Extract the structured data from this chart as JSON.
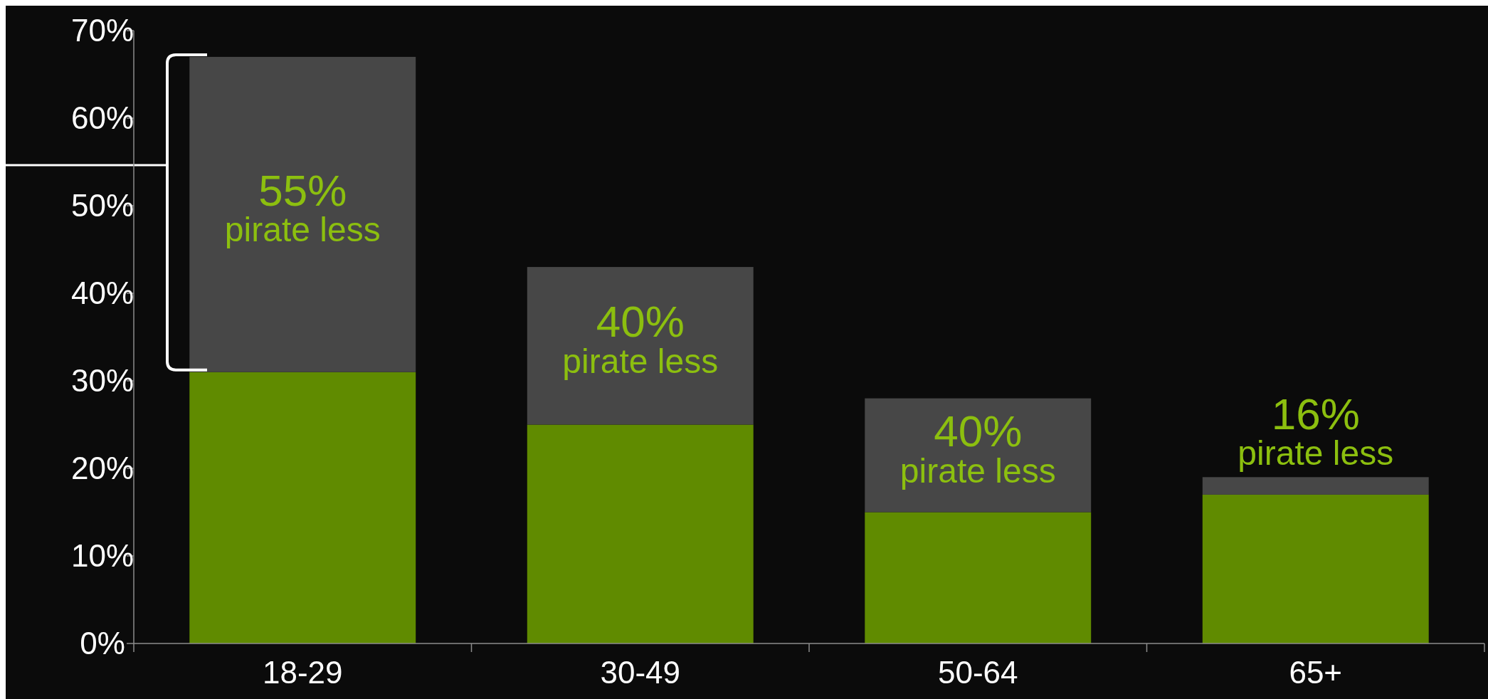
{
  "chart_data": {
    "type": "bar",
    "stacked": true,
    "categories": [
      "18-29",
      "30-49",
      "50-64",
      "65+"
    ],
    "series": [
      {
        "color": "#608b00",
        "values": [
          31,
          25,
          15,
          17
        ]
      },
      {
        "color": "#474747",
        "values": [
          36,
          18,
          13,
          2
        ]
      }
    ],
    "ylim": [
      0,
      70
    ],
    "yticks": [
      {
        "value": 0,
        "label": "0%"
      },
      {
        "value": 10,
        "label": "10%"
      },
      {
        "value": 20,
        "label": "20%"
      },
      {
        "value": 30,
        "label": "30%"
      },
      {
        "value": 40,
        "label": "40%"
      },
      {
        "value": 50,
        "label": "50%"
      },
      {
        "value": 60,
        "label": "60%"
      },
      {
        "value": 70,
        "label": "70%"
      }
    ],
    "annotations": [
      "55% pirate less",
      "40% pirate less",
      "40% pirate less",
      "16% pirate less"
    ],
    "grid": false
  }
}
